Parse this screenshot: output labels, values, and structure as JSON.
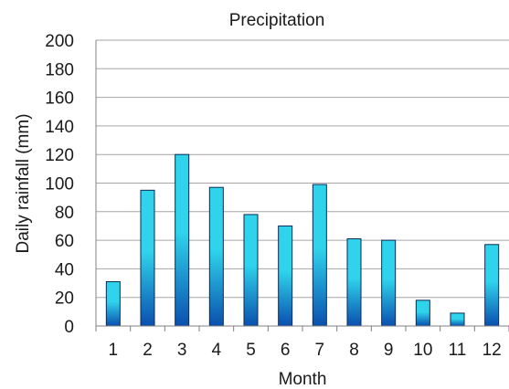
{
  "chart_data": {
    "type": "bar",
    "title": "Precipitation",
    "xlabel": "Month",
    "ylabel": "Daily rainfall (mm)",
    "categories": [
      "1",
      "2",
      "3",
      "4",
      "5",
      "6",
      "7",
      "8",
      "9",
      "10",
      "11",
      "12"
    ],
    "values": [
      31,
      95,
      120,
      97,
      78,
      70,
      99,
      61,
      60,
      18,
      9,
      57
    ],
    "ylim": [
      0,
      200
    ],
    "yticks": [
      0,
      20,
      40,
      60,
      80,
      100,
      120,
      140,
      160,
      180,
      200
    ],
    "grid": true,
    "legend": "none",
    "colors": {
      "bar_dark": "#0a4fae",
      "bar_light": "#2fd4ec",
      "bar_stroke": "#0b2a55",
      "grid": "#a6a6a6",
      "axis": "#808080"
    }
  }
}
